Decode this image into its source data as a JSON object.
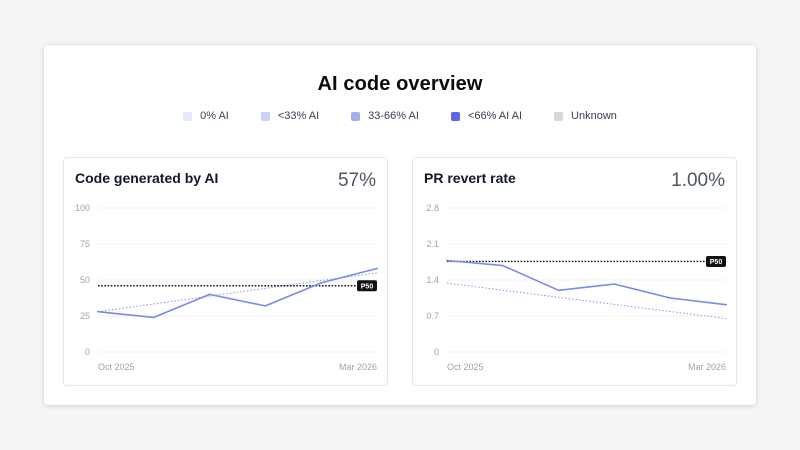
{
  "page": {
    "title": "AI code overview"
  },
  "legend": [
    {
      "label": "0% AI",
      "color": "#e3e9fb"
    },
    {
      "label": "<33% AI",
      "color": "#cad3f5"
    },
    {
      "label": "33-66% AI",
      "color": "#a3b0ef"
    },
    {
      "label": "<66% AI AI",
      "color": "#5f67e4"
    },
    {
      "label": "Unknown",
      "color": "#d7d8de"
    }
  ],
  "cards": {
    "code_ai": {
      "title": "Code generated by AI",
      "value": "57%"
    },
    "revert": {
      "title": "PR revert rate",
      "value": "1.00%"
    }
  },
  "colors": {
    "line": "#7b8ae6",
    "trend": "#8b92e8",
    "p50": "#111111"
  },
  "chart_data": [
    {
      "type": "line",
      "title": "Code generated by AI",
      "xticks": [
        "Oct 2025",
        "Mar 2026"
      ],
      "yticks": [
        "100",
        "75",
        "50",
        "25",
        "0"
      ],
      "ylim": [
        0,
        100
      ],
      "x": [
        0,
        1,
        2,
        3,
        4,
        5
      ],
      "series": [
        {
          "values": [
            28,
            24,
            40,
            32,
            48,
            58
          ]
        }
      ],
      "trend": [
        28,
        55
      ],
      "reference": {
        "label": "P50",
        "value": 46
      },
      "grid": true
    },
    {
      "type": "line",
      "title": "PR revert rate",
      "xticks": [
        "Oct 2025",
        "Mar 2026"
      ],
      "yticks": [
        "2.8",
        "2.1",
        "1.4",
        "0.7",
        "0"
      ],
      "ylim": [
        0,
        2.8
      ],
      "x": [
        0,
        1,
        2,
        3,
        4,
        5
      ],
      "series": [
        {
          "values": [
            1.78,
            1.68,
            1.2,
            1.32,
            1.05,
            0.92
          ]
        }
      ],
      "trend": [
        1.34,
        0.65
      ],
      "reference": {
        "label": "P50",
        "value": 1.76
      },
      "grid": true
    }
  ]
}
